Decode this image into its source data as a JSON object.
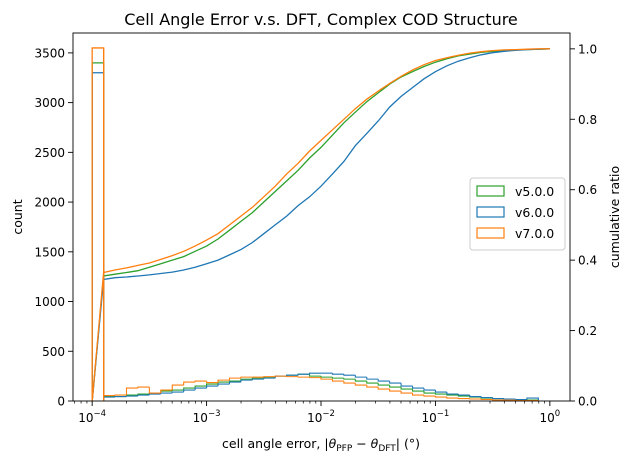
{
  "chart_data": {
    "type": "histogram-step-with-cumulative-line",
    "title": "Cell Angle Error v.s. DFT, Complex COD Structure",
    "xlabel": "cell angle error, |θPFP − θDFT| (°)",
    "xlabel_parts": {
      "prefix": "cell angle error, |",
      "theta1": "θ",
      "sub1": "PFP",
      "minus": " − ",
      "theta2": "θ",
      "sub2": "DFT",
      "suffix": "| (°)"
    },
    "ylabel": "count",
    "y2label": "cumulative ratio",
    "xscale": "log",
    "xlim": [
      6.8e-05,
      1.5
    ],
    "ylim": [
      0,
      3700
    ],
    "y2lim": [
      0,
      1.045
    ],
    "x_ticks": [
      {
        "value": 0.0001,
        "base": "10",
        "exp": "−4"
      },
      {
        "value": 0.001,
        "base": "10",
        "exp": "−3"
      },
      {
        "value": 0.01,
        "base": "10",
        "exp": "−2"
      },
      {
        "value": 0.1,
        "base": "10",
        "exp": "−1"
      },
      {
        "value": 1,
        "base": "10",
        "exp": "0"
      }
    ],
    "y_ticks": [
      0,
      500,
      1000,
      1500,
      2000,
      2500,
      3000,
      3500
    ],
    "y2_ticks": [
      0.0,
      0.2,
      0.4,
      0.6,
      0.8,
      1.0
    ],
    "legend_position": "center-right",
    "first_bin": [
      0.0001,
      0.000126
    ],
    "bin_edges_log10": [
      -3.9,
      -3.8,
      -3.7,
      -3.6,
      -3.5,
      -3.4,
      -3.3,
      -3.2,
      -3.1,
      -3.0,
      -2.9,
      -2.8,
      -2.7,
      -2.6,
      -2.5,
      -2.4,
      -2.3,
      -2.2,
      -2.1,
      -2.0,
      -1.9,
      -1.8,
      -1.7,
      -1.6,
      -1.5,
      -1.4,
      -1.3,
      -1.2,
      -1.1,
      -1.0,
      -0.9,
      -0.8,
      -0.7,
      -0.6,
      -0.5,
      -0.4,
      -0.3,
      -0.2,
      -0.1,
      0.0
    ],
    "cumulative_x_log10": [
      -4.0,
      -3.9,
      -3.8,
      -3.7,
      -3.6,
      -3.5,
      -3.4,
      -3.3,
      -3.2,
      -3.1,
      -3.0,
      -2.9,
      -2.8,
      -2.7,
      -2.6,
      -2.5,
      -2.4,
      -2.3,
      -2.2,
      -2.1,
      -2.0,
      -1.9,
      -1.8,
      -1.7,
      -1.6,
      -1.5,
      -1.4,
      -1.3,
      -1.2,
      -1.1,
      -1.0,
      -0.9,
      -0.8,
      -0.7,
      -0.6,
      -0.5,
      -0.4,
      -0.3,
      -0.2,
      -0.1,
      0.0
    ],
    "series": [
      {
        "name": "v5.0.0",
        "color": "#2ca02c",
        "first_bin_count": 3400,
        "counts": [
          40,
          50,
          45,
          60,
          70,
          80,
          100,
          110,
          130,
          150,
          170,
          190,
          200,
          220,
          230,
          240,
          250,
          260,
          270,
          250,
          240,
          230,
          220,
          200,
          180,
          160,
          140,
          120,
          100,
          80,
          70,
          60,
          50,
          40,
          30,
          25,
          20,
          15,
          10
        ],
        "cumulative": [
          0.0,
          0.355,
          0.36,
          0.365,
          0.37,
          0.38,
          0.39,
          0.4,
          0.41,
          0.425,
          0.44,
          0.46,
          0.485,
          0.51,
          0.535,
          0.565,
          0.595,
          0.625,
          0.655,
          0.69,
          0.72,
          0.755,
          0.79,
          0.82,
          0.85,
          0.875,
          0.9,
          0.92,
          0.935,
          0.95,
          0.962,
          0.972,
          0.98,
          0.985,
          0.99,
          0.993,
          0.995,
          0.997,
          0.998,
          0.999,
          1.0
        ]
      },
      {
        "name": "v6.0.0",
        "color": "#1f77b4",
        "first_bin_count": 3300,
        "counts": [
          30,
          40,
          45,
          50,
          60,
          70,
          80,
          90,
          110,
          130,
          150,
          170,
          190,
          210,
          220,
          230,
          250,
          260,
          270,
          280,
          280,
          270,
          260,
          240,
          220,
          200,
          180,
          150,
          130,
          110,
          90,
          70,
          60,
          45,
          35,
          25,
          20,
          15,
          30
        ],
        "cumulative": [
          0.0,
          0.345,
          0.35,
          0.352,
          0.355,
          0.358,
          0.362,
          0.366,
          0.372,
          0.38,
          0.39,
          0.4,
          0.415,
          0.43,
          0.45,
          0.475,
          0.5,
          0.525,
          0.555,
          0.58,
          0.61,
          0.645,
          0.68,
          0.725,
          0.76,
          0.795,
          0.835,
          0.865,
          0.89,
          0.915,
          0.935,
          0.952,
          0.965,
          0.975,
          0.983,
          0.989,
          0.993,
          0.996,
          0.998,
          0.999,
          1.0
        ]
      },
      {
        "name": "v7.0.0",
        "color": "#ff7f0e",
        "first_bin_count": 3550,
        "counts": [
          50,
          55,
          60,
          130,
          140,
          80,
          110,
          160,
          190,
          200,
          185,
          210,
          230,
          240,
          240,
          245,
          250,
          245,
          240,
          235,
          220,
          200,
          180,
          160,
          140,
          120,
          100,
          80,
          60,
          50,
          40,
          30,
          25,
          20,
          15,
          10,
          8,
          5,
          5
        ],
        "cumulative": [
          0.0,
          0.365,
          0.372,
          0.378,
          0.385,
          0.392,
          0.402,
          0.413,
          0.425,
          0.44,
          0.457,
          0.475,
          0.5,
          0.525,
          0.55,
          0.58,
          0.61,
          0.645,
          0.675,
          0.71,
          0.74,
          0.77,
          0.8,
          0.83,
          0.857,
          0.88,
          0.902,
          0.922,
          0.94,
          0.955,
          0.967,
          0.975,
          0.982,
          0.988,
          0.992,
          0.995,
          0.997,
          0.998,
          0.999,
          1.0,
          1.0
        ]
      }
    ]
  }
}
